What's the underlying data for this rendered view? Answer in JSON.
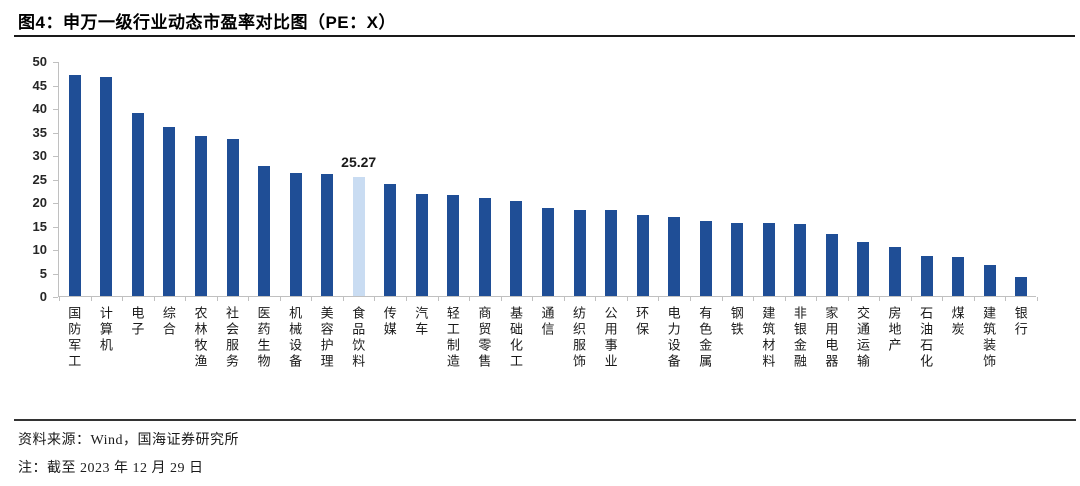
{
  "figure": {
    "title": "图4：申万一级行业动态市盈率对比图（PE：X）",
    "source": "资料来源：Wind，国海证券研究所",
    "note": "注：截至 2023 年 12 月 29 日"
  },
  "chart_data": {
    "type": "bar",
    "title": "申万一级行业动态市盈率对比图（PE：X）",
    "xlabel": "",
    "ylabel": "",
    "ylim": [
      0,
      50
    ],
    "ytick_step": 5,
    "grid": false,
    "legend": false,
    "categories": [
      "国防军工",
      "计算机",
      "电子",
      "综合",
      "农林牧渔",
      "社会服务",
      "医药生物",
      "机械设备",
      "美容护理",
      "食品饮料",
      "传媒",
      "汽车",
      "轻工制造",
      "商贸零售",
      "基础化工",
      "通信",
      "纺织服饰",
      "公用事业",
      "环保",
      "电力设备",
      "有色金属",
      "钢铁",
      "建筑材料",
      "非银金融",
      "家用电器",
      "交通运输",
      "房地产",
      "石油石化",
      "煤炭",
      "建筑装饰",
      "银行"
    ],
    "values": [
      47.0,
      46.6,
      38.9,
      35.9,
      34.0,
      33.4,
      27.7,
      26.1,
      26.0,
      25.27,
      23.9,
      21.7,
      21.5,
      20.8,
      20.3,
      18.7,
      18.3,
      18.2,
      17.3,
      16.9,
      15.9,
      15.6,
      15.5,
      15.4,
      13.1,
      11.5,
      10.4,
      8.6,
      8.4,
      6.6,
      4.0
    ],
    "highlight": {
      "index": 9,
      "category": "食品饮料",
      "label": "25.27"
    },
    "colors": {
      "bar": "#1F4E96",
      "highlight_bar": "#C9DCF2",
      "axis": "#C0C0C0",
      "text": "#1A1A1A"
    }
  }
}
